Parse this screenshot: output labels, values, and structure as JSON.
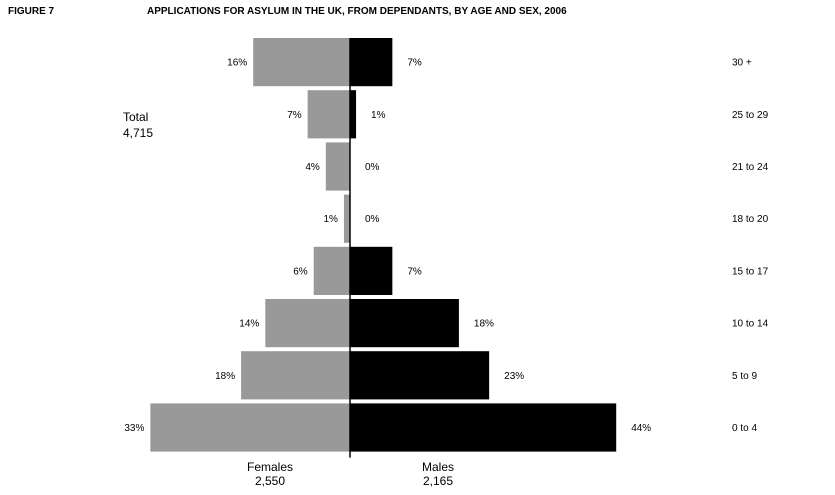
{
  "figure_label": "FIGURE 7",
  "chart_data": {
    "type": "bar",
    "title": "APPLICATIONS FOR ASYLUM IN THE UK, FROM DEPENDANTS, BY AGE AND SEX, 2006",
    "categories": [
      "30 +",
      "25 to 29",
      "21 to 24",
      "18 to 20",
      "15 to 17",
      "10 to 14",
      "5 to 9",
      "0 to 4"
    ],
    "series": [
      {
        "name": "Females",
        "values": [
          16,
          7,
          4,
          1,
          6,
          14,
          18,
          33
        ],
        "labels": [
          "16%",
          "7%",
          "4%",
          "1%",
          "6%",
          "14%",
          "18%",
          "33%"
        ],
        "color": "#999999"
      },
      {
        "name": "Males",
        "values": [
          7,
          1,
          0,
          0,
          7,
          18,
          23,
          44
        ],
        "labels": [
          "7%",
          "1%",
          "0%",
          "0%",
          "7%",
          "18%",
          "23%",
          "44%"
        ],
        "color": "#000000"
      }
    ],
    "total_label": "Total",
    "total_value": "4,715",
    "females_label": "Females",
    "females_total": "2,550",
    "males_label": "Males",
    "males_total": "2,165"
  }
}
